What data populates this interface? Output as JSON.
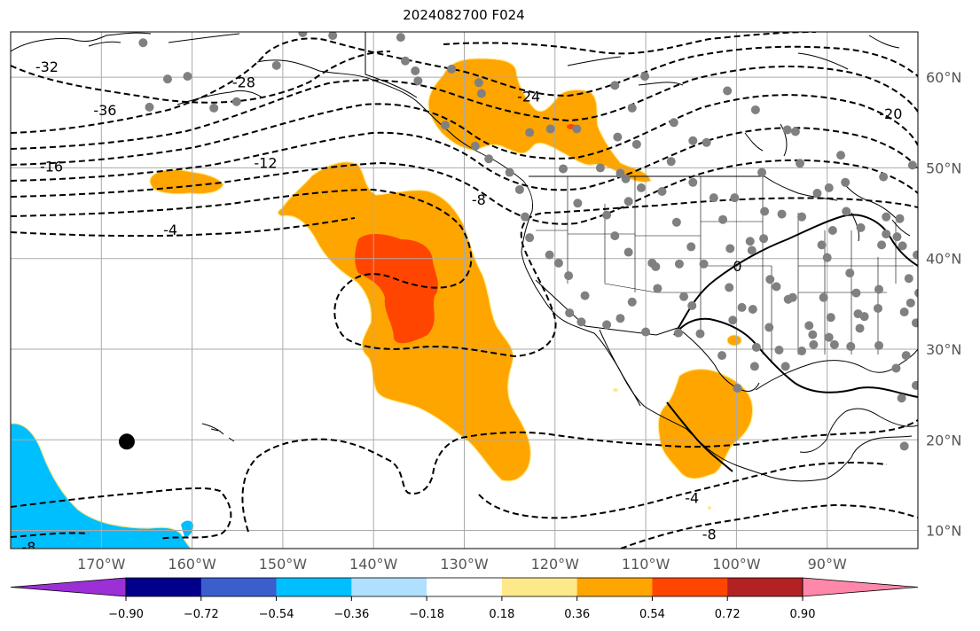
{
  "title": "2024082700 F024",
  "map": {
    "lon_range": [
      -180,
      -80
    ],
    "lat_range": [
      8,
      65
    ],
    "lon_ticks": [
      {
        "lon": -170,
        "label": "170°W"
      },
      {
        "lon": -160,
        "label": "160°W"
      },
      {
        "lon": -150,
        "label": "150°W"
      },
      {
        "lon": -140,
        "label": "140°W"
      },
      {
        "lon": -130,
        "label": "130°W"
      },
      {
        "lon": -120,
        "label": "120°W"
      },
      {
        "lon": -110,
        "label": "110°W"
      },
      {
        "lon": -100,
        "label": "100°W"
      },
      {
        "lon": -90,
        "label": "90°W"
      }
    ],
    "lat_ticks": [
      {
        "lat": 60,
        "label": "60°N"
      },
      {
        "lat": 50,
        "label": "50°N"
      },
      {
        "lat": 40,
        "label": "40°N"
      },
      {
        "lat": 30,
        "label": "30°N"
      },
      {
        "lat": 20,
        "label": "20°N"
      },
      {
        "lat": 10,
        "label": "10°N"
      }
    ],
    "grid": true,
    "contour_labels": [
      {
        "text": "-32",
        "lon": -176,
        "lat": 61.2
      },
      {
        "text": "-36",
        "lon": -169.6,
        "lat": 56.4
      },
      {
        "text": "-28",
        "lon": -154.3,
        "lat": 59.5
      },
      {
        "text": "-24",
        "lon": -122.9,
        "lat": 57.9
      },
      {
        "text": "-20",
        "lon": -83,
        "lat": 56
      },
      {
        "text": "-16",
        "lon": -175.5,
        "lat": 50.2
      },
      {
        "text": "-12",
        "lon": -151.9,
        "lat": 50.6
      },
      {
        "text": "-8",
        "lon": -128.4,
        "lat": 46.5
      },
      {
        "text": "-4",
        "lon": -162.4,
        "lat": 43.2
      },
      {
        "text": "0",
        "lon": -99.9,
        "lat": 39.2
      },
      {
        "text": "-4",
        "lon": -104.9,
        "lat": 13.6
      },
      {
        "text": "-8",
        "lon": -103,
        "lat": 9.6
      },
      {
        "text": "-8",
        "lon": -178,
        "lat": 8.2
      }
    ],
    "big_marker": {
      "lon": -167.2,
      "lat": 19.8
    },
    "station_points": [
      [
        -165.4,
        63.8
      ],
      [
        -160.5,
        60.1
      ],
      [
        -162.7,
        59.8
      ],
      [
        -155.1,
        57.3
      ],
      [
        -157.6,
        56.6
      ],
      [
        -164.7,
        56.7
      ],
      [
        -150.7,
        61.3
      ],
      [
        -147.8,
        64.9
      ],
      [
        -144.5,
        64.6
      ],
      [
        -137,
        64.4
      ],
      [
        -135.4,
        60.7
      ],
      [
        -131.4,
        60.9
      ],
      [
        -132.1,
        54.7
      ],
      [
        -128.8,
        52.4
      ],
      [
        -127.3,
        51
      ],
      [
        -123.9,
        47.6
      ],
      [
        -125,
        49.5
      ],
      [
        -123.3,
        44.6
      ],
      [
        -122.8,
        42.3
      ],
      [
        -120.6,
        40.4
      ],
      [
        -118.5,
        38.1
      ],
      [
        -114.3,
        44.8
      ],
      [
        -111.9,
        46.3
      ],
      [
        -108.2,
        47.4
      ],
      [
        -104.8,
        48.4
      ],
      [
        -100.2,
        46.7
      ],
      [
        -97.2,
        49.5
      ],
      [
        -93,
        50.5
      ],
      [
        -88.5,
        51.4
      ],
      [
        -83.8,
        49
      ],
      [
        -80.6,
        50.3
      ],
      [
        -117.6,
        54.3
      ],
      [
        -113.1,
        53.4
      ],
      [
        -111.5,
        56.6
      ],
      [
        -113.4,
        59.1
      ],
      [
        -110.1,
        60.1
      ],
      [
        -106.9,
        55
      ],
      [
        -104.8,
        53
      ],
      [
        -103.3,
        52.8
      ],
      [
        -111,
        52.6
      ],
      [
        -115,
        50
      ],
      [
        -112.8,
        49.4
      ],
      [
        -110.5,
        47.8
      ],
      [
        -106.6,
        44
      ],
      [
        -105,
        41.3
      ],
      [
        -113.4,
        42.5
      ],
      [
        -111.9,
        40.7
      ],
      [
        -108.9,
        39.1
      ],
      [
        -106.3,
        39.4
      ],
      [
        -103.6,
        39.4
      ],
      [
        -100.7,
        41.1
      ],
      [
        -98.3,
        40.9
      ],
      [
        -97,
        42.2
      ],
      [
        -95,
        44.9
      ],
      [
        -92.8,
        44.6
      ],
      [
        -91.1,
        47.2
      ],
      [
        -93.5,
        54
      ],
      [
        -101.5,
        44.3
      ],
      [
        -96.9,
        45.2
      ],
      [
        -100.4,
        33.2
      ],
      [
        -98.2,
        34.4
      ],
      [
        -95.6,
        36.9
      ],
      [
        -94.3,
        35.5
      ],
      [
        -90,
        40.1
      ],
      [
        -87.5,
        38.4
      ],
      [
        -84,
        41.5
      ],
      [
        -86.3,
        43.4
      ],
      [
        -89.4,
        43.1
      ],
      [
        -83.5,
        44.6
      ],
      [
        -82.3,
        42.4
      ],
      [
        -80.1,
        40.4
      ],
      [
        -79.9,
        36.2
      ],
      [
        -81.5,
        34.1
      ],
      [
        -84.4,
        34.5
      ],
      [
        -86.6,
        33.9
      ],
      [
        -89.6,
        33.5
      ],
      [
        -92,
        32.6
      ],
      [
        -96.4,
        32.4
      ],
      [
        -95.3,
        29.9
      ],
      [
        -97.8,
        30.2
      ],
      [
        -98,
        28.1
      ],
      [
        -99.9,
        25.7
      ],
      [
        -101.6,
        29.3
      ],
      [
        -104,
        31.7
      ],
      [
        -106.4,
        31.8
      ],
      [
        -110,
        31.9
      ],
      [
        -112.8,
        33.4
      ],
      [
        -114.3,
        32.7
      ],
      [
        -117.1,
        33
      ],
      [
        -116.7,
        35.9
      ],
      [
        -111.5,
        35.2
      ],
      [
        -109.3,
        39.5
      ],
      [
        -99.4,
        34.6
      ],
      [
        -92.8,
        29.8
      ],
      [
        -91.5,
        30.5
      ],
      [
        -89.2,
        30.5
      ],
      [
        -87.4,
        30.3
      ],
      [
        -84.3,
        30.4
      ],
      [
        -81.3,
        29.3
      ],
      [
        -80.2,
        26
      ],
      [
        -82.4,
        27.9
      ],
      [
        -81.8,
        24.6
      ],
      [
        -81.5,
        19.3
      ],
      [
        -81,
        37.8
      ],
      [
        -80.2,
        32.9
      ],
      [
        -80.8,
        35.1
      ],
      [
        -83.5,
        42.7
      ],
      [
        -112.2,
        48.8
      ],
      [
        -107.2,
        50.7
      ],
      [
        -120.5,
        54.3
      ],
      [
        -122.8,
        53.9
      ],
      [
        -136.5,
        61.8
      ],
      [
        -128.1,
        58.2
      ],
      [
        -119.1,
        49.9
      ],
      [
        -117.5,
        46.1
      ],
      [
        -128.4,
        59.4
      ],
      [
        -135.1,
        59.6
      ],
      [
        -97.9,
        56.4
      ],
      [
        -101,
        58.5
      ],
      [
        -94.4,
        54.2
      ],
      [
        -87.9,
        45.2
      ],
      [
        -91.6,
        31.6
      ],
      [
        -93.8,
        35.7
      ],
      [
        -90.4,
        35.7
      ],
      [
        -84.3,
        36.6
      ],
      [
        -86.8,
        36.2
      ],
      [
        -89.8,
        47.8
      ],
      [
        -98.5,
        41.9
      ],
      [
        -104.9,
        34.8
      ],
      [
        -108.7,
        36.7
      ],
      [
        -102.5,
        46.7
      ],
      [
        -119.6,
        39.5
      ],
      [
        -85.9,
        33.6
      ],
      [
        -86.4,
        32.3
      ],
      [
        -89.8,
        31.3
      ],
      [
        -118.4,
        34
      ],
      [
        -81.7,
        41.4
      ],
      [
        -88,
        48.4
      ],
      [
        -90.6,
        41.5
      ],
      [
        -82,
        44.4
      ],
      [
        -96.3,
        37.7
      ],
      [
        -100.8,
        36.8
      ],
      [
        -105.8,
        35.8
      ],
      [
        -94.6,
        28.1
      ]
    ]
  },
  "chart_data": {
    "type": "heatmap",
    "title": "2024082700 F024",
    "field_colorbar": {
      "ticks": [
        -0.9,
        -0.72,
        -0.54,
        -0.36,
        -0.18,
        0.18,
        0.36,
        0.54,
        0.72,
        0.9
      ],
      "tick_labels": [
        "−0.90",
        "−0.72",
        "−0.54",
        "−0.36",
        "−0.18",
        "0.18",
        "0.36",
        "0.54",
        "0.72",
        "0.90"
      ],
      "bins": [
        {
          "range": [
            -1.08,
            -0.9
          ],
          "color": "#9b30d6"
        },
        {
          "range": [
            -0.9,
            -0.72
          ],
          "color": "#00008b"
        },
        {
          "range": [
            -0.72,
            -0.54
          ],
          "color": "#3a5fcd"
        },
        {
          "range": [
            -0.54,
            -0.36
          ],
          "color": "#00bfff"
        },
        {
          "range": [
            -0.36,
            -0.18
          ],
          "color": "#b0e0ff"
        },
        {
          "range": [
            -0.18,
            0.18
          ],
          "color": "#ffffff"
        },
        {
          "range": [
            0.18,
            0.36
          ],
          "color": "#fee98a"
        },
        {
          "range": [
            0.36,
            0.54
          ],
          "color": "#ffa500"
        },
        {
          "range": [
            0.54,
            0.72
          ],
          "color": "#ff4500"
        },
        {
          "range": [
            0.72,
            0.9
          ],
          "color": "#b22222"
        },
        {
          "range": [
            0.9,
            1.08
          ],
          "color": "#ff88aa"
        }
      ],
      "extend": "both"
    },
    "contour_levels": [
      -36,
      -32,
      -28,
      -24,
      -20,
      -16,
      -12,
      -8,
      -4,
      0
    ],
    "contour_style": {
      "negative": "dashed",
      "zero": "solid",
      "color": "#000000"
    }
  }
}
